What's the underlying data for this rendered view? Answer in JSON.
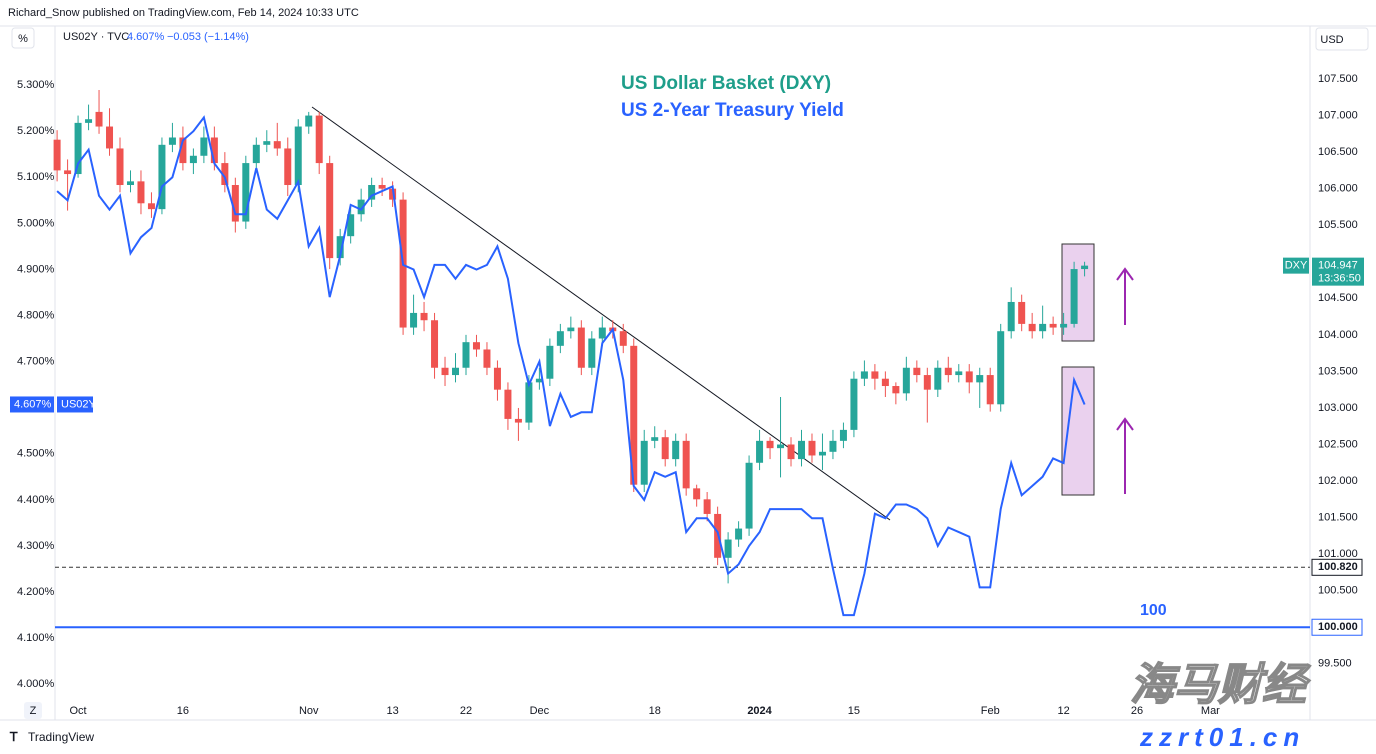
{
  "header": "Richard_Snow published on TradingView.com, Feb 14, 2024 10:33 UTC",
  "footer": "TradingView",
  "buttons": {
    "percent": "%",
    "currency": "USD",
    "zoom": "Z"
  },
  "watermark": {
    "text": "海马财经",
    "url": "zzrt01.cn"
  },
  "chart_data": {
    "type": "candlestick",
    "annotations": [
      "US Dollar Basket (DXY)",
      "US 2-Year Treasury Yield",
      "100"
    ],
    "legend": {
      "symbol": "US02Y · TVC",
      "value": "4.607%",
      "change": "−0.053 (−1.14%)"
    },
    "xlim": [
      -0.2,
      119.5
    ],
    "xticks": [
      {
        "value": 2,
        "label": "Oct"
      },
      {
        "value": 12,
        "label": "16"
      },
      {
        "value": 24,
        "label": "Nov"
      },
      {
        "value": 32,
        "label": "13"
      },
      {
        "value": 39,
        "label": "22"
      },
      {
        "value": 46,
        "label": "Dec"
      },
      {
        "value": 57,
        "label": "18"
      },
      {
        "value": 67,
        "label": "2024"
      },
      {
        "value": 76,
        "label": "15"
      },
      {
        "value": 89,
        "label": "Feb"
      },
      {
        "value": 96,
        "label": "12"
      },
      {
        "value": 103,
        "label": "26"
      },
      {
        "value": 110,
        "label": "Mar"
      }
    ],
    "ylim": [
      3.97,
      5.424
    ],
    "yticks": [
      {
        "value": 4.0,
        "label": "4.000%"
      },
      {
        "value": 4.1,
        "label": "4.100%"
      },
      {
        "value": 4.2,
        "label": "4.200%"
      },
      {
        "value": 4.3,
        "label": "4.300%"
      },
      {
        "value": 4.4,
        "label": "4.400%"
      },
      {
        "value": 4.5,
        "label": "4.500%"
      },
      {
        "value": 4.7,
        "label": "4.700%"
      },
      {
        "value": 4.8,
        "label": "4.800%"
      },
      {
        "value": 4.9,
        "label": "4.900%"
      },
      {
        "value": 5.0,
        "label": "5.000%"
      },
      {
        "value": 5.1,
        "label": "5.100%"
      },
      {
        "value": 5.2,
        "label": "5.200%"
      },
      {
        "value": 5.3,
        "label": "5.300%"
      }
    ],
    "y2lim": [
      99.032,
      108.198
    ],
    "y2ticks": [
      {
        "value": 99.5,
        "label": "99.500"
      },
      {
        "value": 100.5,
        "label": "100.500"
      },
      {
        "value": 101,
        "label": "101.000"
      },
      {
        "value": 101.5,
        "label": "101.500"
      },
      {
        "value": 102,
        "label": "102.000"
      },
      {
        "value": 102.5,
        "label": "102.500"
      },
      {
        "value": 103,
        "label": "103.000"
      },
      {
        "value": 103.5,
        "label": "103.500"
      },
      {
        "value": 104,
        "label": "104.000"
      },
      {
        "value": 104.5,
        "label": "104.500"
      },
      {
        "value": 105.5,
        "label": "105.500"
      },
      {
        "value": 106,
        "label": "106.000"
      },
      {
        "value": 106.5,
        "label": "106.500"
      },
      {
        "value": 107,
        "label": "107.000"
      },
      {
        "value": 107.5,
        "label": "107.500"
      }
    ],
    "grid": false,
    "hlines": [
      {
        "value": 100.82,
        "label": "100.820",
        "style": "dashed",
        "color": "#333333"
      },
      {
        "value": 100,
        "label": "100.000",
        "style": "solid",
        "color": "#2962ff"
      }
    ],
    "series": [
      {
        "name": "US02Y",
        "type": "line",
        "color": "#2962ff",
        "last": "4.607%",
        "values": [
          5.07,
          5.05,
          5.13,
          5.16,
          5.06,
          5.03,
          5.06,
          4.935,
          4.97,
          4.99,
          5.08,
          5.1,
          5.18,
          5.2,
          5.23,
          5.13,
          5.1,
          5.02,
          5.02,
          5.12,
          5.03,
          5.01,
          5.05,
          5.09,
          4.95,
          4.99,
          4.84,
          4.93,
          5.04,
          5.03,
          5.06,
          5.07,
          5.08,
          4.91,
          4.9,
          4.84,
          4.91,
          4.91,
          4.88,
          4.91,
          4.9,
          4.91,
          4.95,
          4.88,
          4.74,
          4.65,
          4.7,
          4.56,
          4.63,
          4.58,
          4.59,
          4.59,
          4.74,
          4.77,
          4.66,
          4.43,
          4.4,
          4.46,
          4.45,
          4.46,
          4.33,
          4.36,
          4.36,
          4.33,
          4.24,
          4.26,
          4.3,
          4.33,
          4.38,
          4.38,
          4.38,
          4.38,
          4.36,
          4.36,
          4.25,
          4.15,
          4.15,
          4.24,
          4.37,
          4.36,
          4.39,
          4.39,
          4.38,
          4.36,
          4.3,
          4.34,
          4.33,
          4.32,
          4.21,
          4.21,
          4.38,
          4.48,
          4.41,
          4.43,
          4.45,
          4.49,
          4.48,
          4.66,
          4.607
        ]
      },
      {
        "name": "DXY",
        "type": "candlestick",
        "axis": "y2",
        "up_color": "#26a69a",
        "down_color": "#ef5350",
        "last": {
          "value": 104.947,
          "label": "104.947"
        },
        "countdown": "13:36:50",
        "open": [
          106.67,
          106.25,
          106.2,
          106.9,
          107.05,
          106.85,
          106.55,
          106.05,
          106.1,
          105.8,
          105.72,
          106.6,
          106.7,
          106.35,
          106.45,
          106.7,
          106.35,
          106.05,
          105.55,
          106.35,
          106.6,
          106.65,
          106.55,
          106.05,
          106.85,
          107.0,
          106.35,
          105.05,
          105.35,
          105.65,
          105.85,
          106.05,
          106.0,
          105.85,
          104.1,
          104.3,
          104.2,
          103.55,
          103.45,
          103.55,
          103.9,
          103.8,
          103.55,
          103.25,
          102.85,
          102.8,
          103.35,
          103.4,
          103.85,
          104.05,
          104.1,
          103.55,
          103.95,
          104.1,
          104.05,
          103.85,
          101.95,
          102.55,
          102.6,
          102.3,
          102.55,
          101.9,
          101.75,
          101.55,
          100.95,
          101.2,
          101.35,
          102.25,
          102.55,
          102.45,
          102.5,
          102.3,
          102.55,
          102.35,
          102.4,
          102.55,
          102.7,
          103.4,
          103.5,
          103.4,
          103.3,
          103.2,
          103.55,
          103.45,
          103.25,
          103.55,
          103.45,
          103.5,
          103.35,
          103.45,
          103.05,
          104.05,
          104.45,
          104.15,
          104.05,
          104.15,
          104.1,
          104.15,
          104.9
        ],
        "high": [
          106.8,
          106.4,
          107.0,
          107.15,
          107.35,
          107.1,
          106.7,
          106.25,
          106.25,
          105.95,
          106.7,
          106.9,
          106.85,
          106.55,
          106.85,
          106.85,
          106.5,
          106.15,
          106.45,
          106.7,
          106.8,
          106.9,
          106.7,
          106.95,
          107.05,
          107.05,
          106.45,
          105.45,
          105.75,
          106.0,
          106.15,
          106.15,
          106.1,
          105.95,
          104.55,
          104.45,
          104.3,
          103.7,
          103.75,
          104.0,
          104.0,
          103.9,
          103.65,
          103.35,
          103.0,
          103.45,
          103.55,
          103.95,
          104.15,
          104.25,
          104.2,
          104.05,
          104.25,
          104.2,
          104.15,
          103.95,
          102.7,
          102.75,
          102.7,
          102.65,
          102.65,
          101.95,
          101.85,
          101.65,
          101.3,
          101.45,
          102.35,
          102.7,
          102.6,
          103.15,
          102.6,
          102.7,
          102.65,
          102.65,
          102.7,
          102.8,
          103.5,
          103.65,
          103.6,
          103.5,
          103.35,
          103.7,
          103.65,
          103.55,
          103.65,
          103.7,
          103.6,
          103.6,
          103.55,
          103.55,
          104.15,
          104.65,
          104.55,
          104.3,
          104.4,
          104.25,
          104.3,
          105.0,
          105.0
        ],
        "low": [
          106.1,
          105.7,
          106.15,
          106.8,
          106.75,
          106.45,
          105.95,
          105.95,
          105.65,
          105.6,
          105.65,
          106.5,
          106.25,
          106.2,
          106.35,
          106.25,
          105.95,
          105.4,
          105.45,
          106.25,
          106.5,
          106.45,
          105.9,
          105.95,
          106.75,
          106.2,
          104.9,
          104.95,
          105.25,
          105.55,
          105.75,
          105.9,
          105.75,
          104.0,
          104.0,
          104.05,
          103.4,
          103.3,
          103.35,
          103.45,
          103.7,
          103.45,
          103.1,
          102.7,
          102.55,
          102.7,
          103.25,
          103.3,
          103.75,
          103.95,
          103.45,
          103.45,
          103.85,
          103.95,
          103.75,
          101.85,
          101.85,
          102.45,
          102.2,
          102.2,
          101.8,
          101.65,
          101.45,
          100.85,
          100.6,
          101.1,
          101.25,
          102.15,
          102.3,
          102.05,
          102.2,
          102.2,
          102.25,
          102.15,
          102.3,
          102.45,
          102.6,
          103.3,
          103.25,
          103.15,
          103.05,
          103.1,
          103.35,
          102.8,
          103.15,
          103.35,
          103.35,
          103.2,
          103.0,
          102.95,
          102.95,
          103.95,
          104.05,
          103.95,
          103.95,
          104.0,
          104.0,
          104.1,
          104.8
        ],
        "close": [
          106.25,
          106.2,
          106.9,
          106.95,
          106.85,
          106.55,
          106.05,
          106.1,
          105.8,
          105.72,
          106.6,
          106.7,
          106.35,
          106.45,
          106.7,
          106.35,
          106.05,
          105.55,
          106.35,
          106.6,
          106.65,
          106.55,
          106.05,
          106.85,
          107.0,
          106.35,
          105.05,
          105.35,
          105.65,
          105.85,
          106.05,
          106.0,
          105.85,
          104.1,
          104.3,
          104.2,
          103.55,
          103.45,
          103.55,
          103.9,
          103.8,
          103.55,
          103.25,
          102.85,
          102.8,
          103.35,
          103.4,
          103.85,
          104.05,
          104.1,
          103.55,
          103.95,
          104.1,
          104.05,
          103.85,
          101.95,
          102.55,
          102.6,
          102.3,
          102.55,
          101.9,
          101.75,
          101.55,
          100.95,
          101.2,
          101.35,
          102.25,
          102.55,
          102.45,
          102.5,
          102.3,
          102.55,
          102.35,
          102.4,
          102.55,
          102.7,
          103.4,
          103.5,
          103.4,
          103.3,
          103.2,
          103.55,
          103.45,
          103.25,
          103.55,
          103.45,
          103.5,
          103.35,
          103.45,
          103.05,
          104.05,
          104.45,
          104.15,
          104.05,
          104.15,
          104.1,
          104.15,
          104.9,
          104.947
        ]
      }
    ]
  }
}
